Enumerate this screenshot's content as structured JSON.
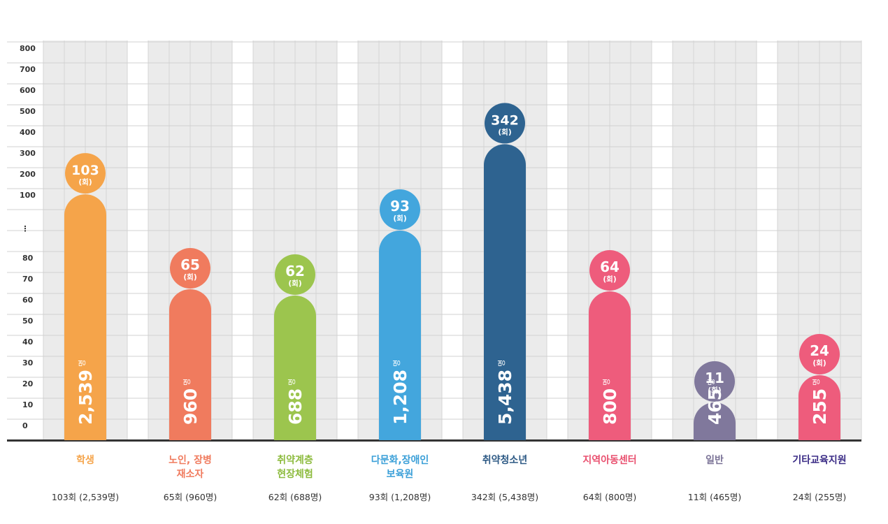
{
  "chart_data": {
    "type": "bar",
    "axis_upper_ticks": [
      "800",
      "700",
      "600",
      "500",
      "400",
      "300",
      "200",
      "100"
    ],
    "axis_break_label": "⋮",
    "axis_lower_ticks": [
      "80",
      "70",
      "60",
      "50",
      "40",
      "30",
      "20",
      "10",
      "0"
    ],
    "broken_axis": {
      "lower_range": [
        0,
        90
      ],
      "upper_range": [
        100,
        800
      ]
    },
    "count_unit": "(회)",
    "people_unit": "명",
    "categories": [
      {
        "name_lines": [
          "학생"
        ],
        "color": "#F5A44A",
        "label_color": "#F5A44A",
        "sessions": 103,
        "sessions_label": "103",
        "people_label": "2,539",
        "summary": "103회 (2,539명)"
      },
      {
        "name_lines": [
          "노인, 장병",
          "재소자"
        ],
        "color": "#F07B5E",
        "label_color": "#F07B5E",
        "sessions": 65,
        "sessions_label": "65",
        "people_label": "960",
        "summary": "65회 (960명)"
      },
      {
        "name_lines": [
          "취약계층",
          "현장체험"
        ],
        "color": "#9CC54E",
        "label_color": "#8DBB3E",
        "sessions": 62,
        "sessions_label": "62",
        "people_label": "688",
        "summary": "62회 (688명)"
      },
      {
        "name_lines": [
          "다문화,장애인",
          "보육원"
        ],
        "color": "#43A6DD",
        "label_color": "#3A9FD8",
        "sessions": 93,
        "sessions_label": "93",
        "people_label": "1,208",
        "summary": "93회 (1,208명)"
      },
      {
        "name_lines": [
          "취약청소년"
        ],
        "color": "#2E6390",
        "label_color": "#2E5A85",
        "sessions": 342,
        "sessions_label": "342",
        "people_label": "5,438",
        "summary": "342회 (5,438명)"
      },
      {
        "name_lines": [
          "지역아동센터"
        ],
        "color": "#EE5C7C",
        "label_color": "#E9506F",
        "sessions": 64,
        "sessions_label": "64",
        "people_label": "800",
        "summary": "64회 (800명)"
      },
      {
        "name_lines": [
          "일반"
        ],
        "color": "#80789C",
        "label_color": "#7A7296",
        "sessions": 11,
        "sessions_label": "11",
        "people_label": "465",
        "summary": "11회 (465명)"
      },
      {
        "name_lines": [
          "기타교육지원"
        ],
        "color": "#EE5C7C",
        "label_color": "#3B2C86",
        "sessions": 24,
        "sessions_label": "24",
        "people_label": "255",
        "summary": "24회 (255명)"
      }
    ]
  }
}
